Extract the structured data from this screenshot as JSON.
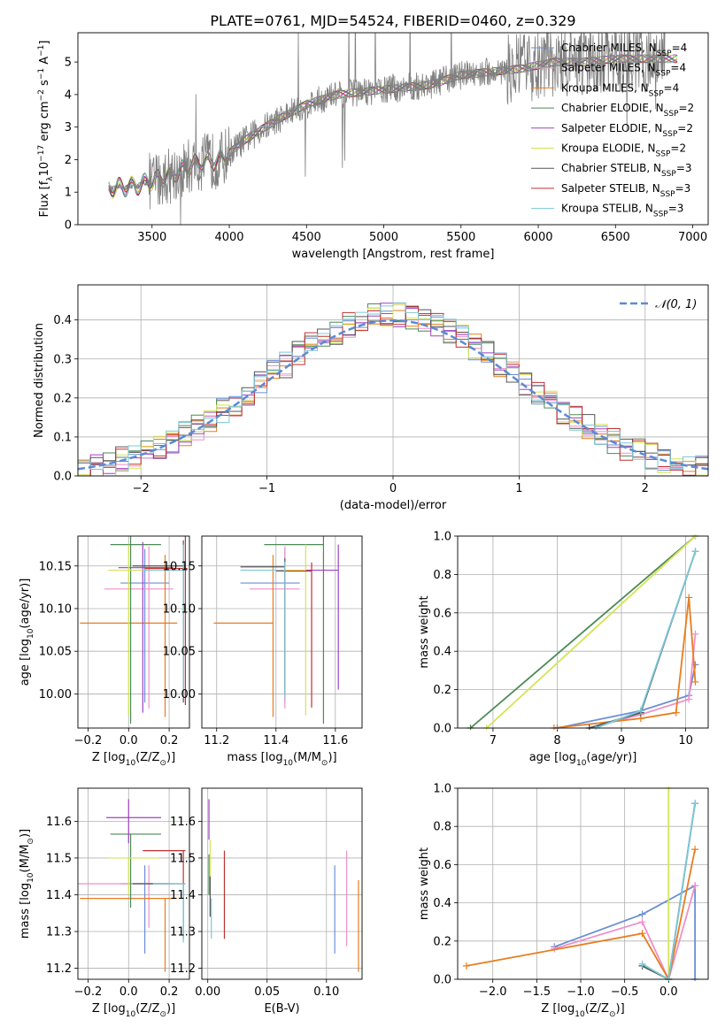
{
  "title": "PLATE=0761, MJD=54524, FIBERID=0460, z=0.329",
  "colors": {
    "chabrier_miles": "#6a8fd6",
    "salpeter_miles": "#f08fc8",
    "kroupa_miles": "#e77d1f",
    "chabrier_elodie": "#4c8a55",
    "salpeter_elodie": "#a040c0",
    "kroupa_elodie": "#d4e455",
    "chabrier_stelib": "#555555",
    "salpeter_stelib": "#c03030",
    "kroupa_stelib": "#7cc8d8",
    "normal_curve": "#5b8ad6",
    "grid": "#b0b0b0",
    "spectrum": "#7f7f7f"
  },
  "chart_data": [
    {
      "id": "spectrum",
      "type": "line",
      "title": "PLATE=0761, MJD=54524, FIBERID=0460, z=0.329",
      "xlabel": "wavelength [Angstrom, rest frame]",
      "ylabel_parts": [
        "Flux [f",
        "λ",
        "10",
        "−17",
        " erg cm",
        "−2",
        " s",
        "−1",
        " A",
        "−1",
        "]"
      ],
      "xlim": [
        3020,
        7100
      ],
      "ylim": [
        0,
        5.9
      ],
      "xticks": [
        "3500",
        "4000",
        "4500",
        "5000",
        "5500",
        "6000",
        "6500",
        "7000"
      ],
      "yticks": [
        "0",
        "1",
        "2",
        "3",
        "4",
        "5"
      ],
      "grid": false,
      "legend_position": "top-right",
      "legend": [
        {
          "base": "Chabrier MILES, N",
          "sub": "SSP",
          "tail": "=4",
          "color_key": "chabrier_miles"
        },
        {
          "base": "Salpeter MILES, N",
          "sub": "SSP",
          "tail": "=4",
          "color_key": "salpeter_miles"
        },
        {
          "base": "Kroupa MILES, N",
          "sub": "SSP",
          "tail": "=4",
          "color_key": "kroupa_miles"
        },
        {
          "base": "Chabrier ELODIE, N",
          "sub": "SSP",
          "tail": "=2",
          "color_key": "chabrier_elodie"
        },
        {
          "base": "Salpeter ELODIE, N",
          "sub": "SSP",
          "tail": "=2",
          "color_key": "salpeter_elodie"
        },
        {
          "base": "Kroupa ELODIE, N",
          "sub": "SSP",
          "tail": "=2",
          "color_key": "kroupa_elodie"
        },
        {
          "base": "Chabrier STELIB, N",
          "sub": "SSP",
          "tail": "=3",
          "color_key": "chabrier_stelib"
        },
        {
          "base": "Salpeter STELIB, N",
          "sub": "SSP",
          "tail": "=3",
          "color_key": "salpeter_stelib"
        },
        {
          "base": "Kroupa STELIB, N",
          "sub": "SSP",
          "tail": "=3",
          "color_key": "kroupa_stelib"
        }
      ],
      "continuum": [
        [
          3200,
          1.1
        ],
        [
          3400,
          1.2
        ],
        [
          3600,
          1.5
        ],
        [
          3800,
          1.9
        ],
        [
          3950,
          2.0
        ],
        [
          4100,
          2.6
        ],
        [
          4300,
          3.2
        ],
        [
          4500,
          3.7
        ],
        [
          4700,
          4.0
        ],
        [
          4900,
          4.1
        ],
        [
          5100,
          4.2
        ],
        [
          5300,
          4.3
        ],
        [
          5500,
          4.6
        ],
        [
          5700,
          4.7
        ],
        [
          5900,
          4.8
        ],
        [
          6100,
          5.0
        ],
        [
          6300,
          5.0
        ],
        [
          6500,
          5.1
        ],
        [
          6800,
          5.1
        ]
      ]
    },
    {
      "id": "residuals",
      "type": "line",
      "xlabel": "(data-model)/error",
      "ylabel": "Normed distribution",
      "xlim": [
        -2.5,
        2.5
      ],
      "ylim": [
        0,
        0.49
      ],
      "xticks": [
        "−2",
        "−1",
        "0",
        "1",
        "2"
      ],
      "yticks": [
        "0.0",
        "0.1",
        "0.2",
        "0.3",
        "0.4"
      ],
      "grid": true,
      "legend_position": "top-right",
      "legend": [
        {
          "label": "𝒩(0, 1)",
          "color_key": "normal_curve"
        }
      ],
      "bin_width": 0.1,
      "bin_start": -2.5
    },
    {
      "id": "age_vs_Z",
      "type": "scatter",
      "xlabel_parts": [
        "Z [log",
        "10",
        "(Z/Z",
        "⊙",
        ")]"
      ],
      "ylabel_parts": [
        "age  [log",
        "10",
        "(age/yr)]"
      ],
      "xlim": [
        -0.25,
        0.3
      ],
      "ylim": [
        9.96,
        10.185
      ],
      "xticks": [
        "−0.2",
        "0.0",
        "0.2"
      ],
      "yticks": [
        "10.00",
        "10.05",
        "10.10",
        "10.15"
      ],
      "grid": true,
      "points": [
        {
          "key": "chabrier_miles",
          "x": 0.08,
          "y": 10.13,
          "xerr": [
            0.12,
            0.12
          ],
          "yerr": [
            0.14,
            0.04
          ]
        },
        {
          "key": "salpeter_miles",
          "x": 0.1,
          "y": 10.123,
          "xerr": [
            0.22,
            0.12
          ],
          "yerr": [
            0.14,
            0.05
          ]
        },
        {
          "key": "kroupa_miles",
          "x": 0.18,
          "y": 10.083,
          "xerr": [
            0.42,
            0.06
          ],
          "yerr": [
            0.11,
            0.08
          ]
        },
        {
          "key": "chabrier_elodie",
          "x": 0.01,
          "y": 10.175,
          "xerr": [
            0.1,
            0.15
          ],
          "yerr": [
            0.21,
            0.01
          ]
        },
        {
          "key": "salpeter_elodie",
          "x": 0.07,
          "y": 10.148,
          "xerr": [
            0.12,
            0.15
          ],
          "yerr": [
            0.17,
            0.03
          ]
        },
        {
          "key": "kroupa_elodie",
          "x": 0.0,
          "y": 10.145,
          "xerr": [
            0.1,
            0.15
          ],
          "yerr": [
            0.17,
            0.03
          ]
        },
        {
          "key": "chabrier_stelib",
          "x": 0.27,
          "y": 10.15,
          "xerr": [
            0.25,
            0.01
          ],
          "yerr": [
            0.16,
            0.03
          ]
        },
        {
          "key": "salpeter_stelib",
          "x": 0.28,
          "y": 10.147,
          "xerr": [
            0.2,
            0.01
          ],
          "yerr": [
            0.16,
            0.04
          ]
        },
        {
          "key": "kroupa_stelib",
          "x": 0.27,
          "y": 10.145,
          "xerr": [
            0.2,
            0.01
          ],
          "yerr": [
            0.15,
            0.03
          ]
        }
      ]
    },
    {
      "id": "age_vs_mass",
      "type": "scatter",
      "xlabel_parts": [
        "mass [log",
        "10",
        "(M/M",
        "⊙",
        ")]"
      ],
      "xlim": [
        11.15,
        11.69
      ],
      "ylim": [
        9.96,
        10.185
      ],
      "xticks": [
        "11.2",
        "11.4",
        "11.6"
      ],
      "yticks": [
        "10.00",
        "10.05",
        "10.10",
        "10.15"
      ],
      "grid": true,
      "points": [
        {
          "key": "chabrier_miles",
          "x": 11.43,
          "y": 10.13,
          "xerr": [
            0.15,
            0.05
          ],
          "yerr": [
            0.14,
            0.04
          ]
        },
        {
          "key": "salpeter_miles",
          "x": 11.43,
          "y": 10.123,
          "xerr": [
            0.12,
            0.05
          ],
          "yerr": [
            0.14,
            0.05
          ]
        },
        {
          "key": "kroupa_miles",
          "x": 11.39,
          "y": 10.083,
          "xerr": [
            0.2,
            0.0
          ],
          "yerr": [
            0.11,
            0.08
          ]
        },
        {
          "key": "chabrier_elodie",
          "x": 11.56,
          "y": 10.175,
          "xerr": [
            0.2,
            0.0
          ],
          "yerr": [
            0.21,
            0.01
          ]
        },
        {
          "key": "salpeter_elodie",
          "x": 11.61,
          "y": 10.145,
          "xerr": [
            0.13,
            0.0
          ],
          "yerr": [
            0.14,
            0.03
          ]
        },
        {
          "key": "kroupa_elodie",
          "x": 11.5,
          "y": 10.145,
          "xerr": [
            0.1,
            0.0
          ],
          "yerr": [
            0.17,
            0.03
          ]
        },
        {
          "key": "chabrier_stelib",
          "x": 11.43,
          "y": 10.149,
          "xerr": [
            0.15,
            0.0
          ],
          "yerr": [
            0.15,
            0.01
          ]
        },
        {
          "key": "salpeter_stelib",
          "x": 11.52,
          "y": 10.144,
          "xerr": [
            0.12,
            0.0
          ],
          "yerr": [
            0.16,
            0.01
          ]
        },
        {
          "key": "kroupa_stelib",
          "x": 11.43,
          "y": 10.145,
          "xerr": [
            0.15,
            0.0
          ],
          "yerr": [
            0.15,
            0.01
          ]
        }
      ]
    },
    {
      "id": "mass_weight_vs_age",
      "type": "line",
      "xlabel_parts": [
        "age  [log",
        "10",
        "(age/yr)]"
      ],
      "ylabel": "mass weight",
      "xlim": [
        6.45,
        10.35
      ],
      "ylim": [
        0,
        1.0
      ],
      "xticks": [
        "7",
        "8",
        "9",
        "10"
      ],
      "yticks": [
        "0.0",
        "0.2",
        "0.4",
        "0.6",
        "0.8",
        "1.0"
      ],
      "grid": true,
      "series": [
        {
          "key": "chabrier_miles",
          "x": [
            8.0,
            9.3,
            10.05,
            10.15
          ],
          "y": [
            0.0,
            0.09,
            0.17,
            0.33
          ]
        },
        {
          "key": "salpeter_miles",
          "x": [
            8.5,
            9.3,
            10.05,
            10.15
          ],
          "y": [
            0.0,
            0.07,
            0.15,
            0.49
          ]
        },
        {
          "key": "kroupa_miles",
          "x": [
            7.95,
            9.3,
            9.85,
            10.05,
            10.15
          ],
          "y": [
            0.0,
            0.05,
            0.08,
            0.68,
            0.24
          ]
        },
        {
          "key": "chabrier_elodie",
          "x": [
            6.65,
            10.15
          ],
          "y": [
            0.0,
            1.0
          ]
        },
        {
          "key": "kroupa_elodie",
          "x": [
            6.9,
            10.15
          ],
          "y": [
            0.0,
            1.0
          ]
        },
        {
          "key": "chabrier_stelib",
          "x": [
            8.5,
            9.3,
            10.15
          ],
          "y": [
            0.0,
            0.08,
            0.92
          ]
        },
        {
          "key": "kroupa_stelib",
          "x": [
            8.6,
            9.3,
            10.15
          ],
          "y": [
            0.0,
            0.09,
            0.92
          ]
        }
      ]
    },
    {
      "id": "mass_vs_Z",
      "type": "scatter",
      "xlabel_parts": [
        "Z [log",
        "10",
        "(Z/Z",
        "⊙",
        ")]"
      ],
      "ylabel_parts": [
        "mass [log",
        "10",
        "(M/M",
        "⊙",
        ")]"
      ],
      "xlim": [
        -0.25,
        0.3
      ],
      "ylim": [
        11.17,
        11.69
      ],
      "xticks": [
        "−0.2",
        "0.0",
        "0.2"
      ],
      "yticks": [
        "11.2",
        "11.3",
        "11.4",
        "11.5",
        "11.6"
      ],
      "grid": true,
      "points": [
        {
          "key": "chabrier_miles",
          "x": 0.08,
          "y": 11.43,
          "xerr": [
            0.12,
            0.12
          ],
          "yerr": [
            0.19,
            0.05
          ]
        },
        {
          "key": "salpeter_miles",
          "x": 0.1,
          "y": 11.43,
          "xerr": [
            0.35,
            0.12
          ],
          "yerr": [
            0.12,
            0.05
          ]
        },
        {
          "key": "kroupa_miles",
          "x": 0.18,
          "y": 11.39,
          "xerr": [
            0.42,
            0.06
          ],
          "yerr": [
            0.2,
            0.0
          ]
        },
        {
          "key": "chabrier_elodie",
          "x": 0.01,
          "y": 11.565,
          "xerr": [
            0.1,
            0.15
          ],
          "yerr": [
            0.2,
            0.0
          ]
        },
        {
          "key": "salpeter_elodie",
          "x": 0.0,
          "y": 11.61,
          "xerr": [
            0.11,
            0.16
          ],
          "yerr": [
            0.07,
            0.05
          ]
        },
        {
          "key": "kroupa_elodie",
          "x": 0.0,
          "y": 11.5,
          "xerr": [
            0.1,
            0.15
          ],
          "yerr": [
            0.1,
            0.0
          ]
        },
        {
          "key": "chabrier_stelib",
          "x": 0.27,
          "y": 11.43,
          "xerr": [
            0.25,
            0.01
          ],
          "yerr": [
            0.15,
            0.0
          ]
        },
        {
          "key": "salpeter_stelib",
          "x": 0.27,
          "y": 11.52,
          "xerr": [
            0.2,
            0.01
          ],
          "yerr": [
            0.12,
            0.0
          ]
        },
        {
          "key": "kroupa_stelib",
          "x": 0.27,
          "y": 11.43,
          "xerr": [
            0.15,
            0.01
          ],
          "yerr": [
            0.16,
            0.0
          ]
        }
      ]
    },
    {
      "id": "mass_vs_ebv",
      "type": "scatter",
      "xlabel": "E(B-V)",
      "xlim": [
        -0.005,
        0.13
      ],
      "ylim": [
        11.17,
        11.69
      ],
      "xticks": [
        "0.00",
        "0.05",
        "0.10"
      ],
      "yticks": [
        "11.2",
        "11.3",
        "11.4",
        "11.5",
        "11.6"
      ],
      "grid": true,
      "points": [
        {
          "key": "chabrier_miles",
          "x": 0.107,
          "y": 11.36,
          "yerr": [
            0.12,
            0.12
          ]
        },
        {
          "key": "salpeter_miles",
          "x": 0.117,
          "y": 11.38,
          "yerr": [
            0.12,
            0.14
          ]
        },
        {
          "key": "kroupa_miles",
          "x": 0.127,
          "y": 11.32,
          "yerr": [
            0.13,
            0.12
          ]
        },
        {
          "key": "chabrier_elodie",
          "x": 0.001,
          "y": 11.45,
          "yerr": [
            0.05,
            0.06
          ]
        },
        {
          "key": "salpeter_elodie",
          "x": 0.001,
          "y": 11.6,
          "yerr": [
            0.05,
            0.06
          ]
        },
        {
          "key": "kroupa_elodie",
          "x": 0.002,
          "y": 11.5,
          "yerr": [
            0.05,
            0.05
          ]
        },
        {
          "key": "chabrier_stelib",
          "x": 0.002,
          "y": 11.4,
          "yerr": [
            0.06,
            0.05
          ]
        },
        {
          "key": "salpeter_stelib",
          "x": 0.014,
          "y": 11.4,
          "yerr": [
            0.12,
            0.12
          ]
        },
        {
          "key": "kroupa_stelib",
          "x": 0.003,
          "y": 11.34,
          "yerr": [
            0.06,
            0.05
          ]
        }
      ]
    },
    {
      "id": "mass_weight_vs_Z",
      "type": "line",
      "xlabel_parts": [
        "Z [log",
        "10",
        "(Z/Z",
        "⊙",
        ")]"
      ],
      "ylabel": "mass weight",
      "xlim": [
        -2.4,
        0.45
      ],
      "ylim": [
        0,
        1.0
      ],
      "xticks": [
        "−2.0",
        "−1.5",
        "−1.0",
        "−0.5",
        "0.0"
      ],
      "yticks": [
        "0.0",
        "0.2",
        "0.4",
        "0.6",
        "0.8",
        "1.0"
      ],
      "grid": true,
      "series": [
        {
          "key": "chabrier_miles",
          "x": [
            -1.3,
            -0.3,
            0.3,
            0.3
          ],
          "y": [
            0.17,
            0.34,
            0.49,
            0.0
          ]
        },
        {
          "key": "salpeter_miles",
          "x": [
            -1.3,
            -0.3,
            0.0,
            0.3
          ],
          "y": [
            0.16,
            0.3,
            0.0,
            0.49
          ]
        },
        {
          "key": "kroupa_miles",
          "x": [
            -2.3,
            -0.3,
            0.0,
            0.3
          ],
          "y": [
            0.07,
            0.24,
            0.0,
            0.68
          ]
        },
        {
          "key": "kroupa_elodie",
          "x": [
            0.0,
            0.0
          ],
          "y": [
            0.0,
            1.0
          ]
        },
        {
          "key": "chabrier_stelib",
          "x": [
            -0.3,
            0.0,
            0.3
          ],
          "y": [
            0.07,
            0.0,
            0.92
          ]
        },
        {
          "key": "kroupa_stelib",
          "x": [
            -0.3,
            0.0,
            0.3
          ],
          "y": [
            0.08,
            0.0,
            0.92
          ]
        }
      ]
    }
  ]
}
